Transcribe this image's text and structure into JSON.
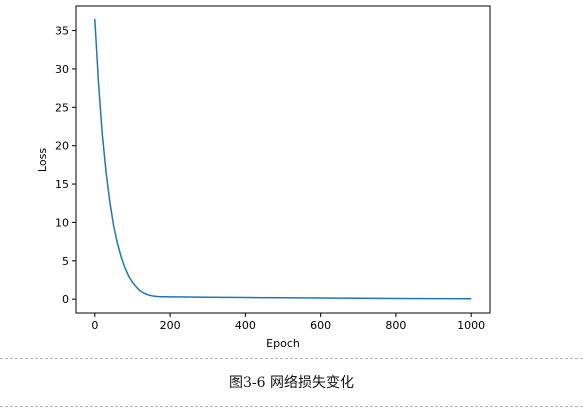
{
  "chart_data": {
    "type": "line",
    "title": "",
    "xlabel": "Epoch",
    "ylabel": "Loss",
    "xlim": [
      -50,
      1050
    ],
    "ylim": [
      -1.8,
      38.2
    ],
    "xticks": [
      0,
      200,
      400,
      600,
      800,
      1000
    ],
    "yticks": [
      0,
      5,
      10,
      15,
      20,
      25,
      30,
      35
    ],
    "grid": false,
    "series": [
      {
        "color": "#1f77b4",
        "x": [
          0,
          10,
          20,
          30,
          40,
          50,
          60,
          70,
          80,
          90,
          100,
          110,
          120,
          130,
          140,
          150,
          160,
          170,
          180,
          190,
          200,
          250,
          300,
          400,
          500,
          600,
          700,
          800,
          900,
          1000
        ],
        "y": [
          36.5,
          28.0,
          21.5,
          16.5,
          12.6,
          9.6,
          7.3,
          5.5,
          4.1,
          3.0,
          2.2,
          1.6,
          1.1,
          0.8,
          0.6,
          0.45,
          0.38,
          0.34,
          0.32,
          0.31,
          0.3,
          0.28,
          0.26,
          0.22,
          0.18,
          0.15,
          0.12,
          0.09,
          0.07,
          0.05
        ]
      }
    ]
  },
  "caption": "图3-6 网络损失变化"
}
